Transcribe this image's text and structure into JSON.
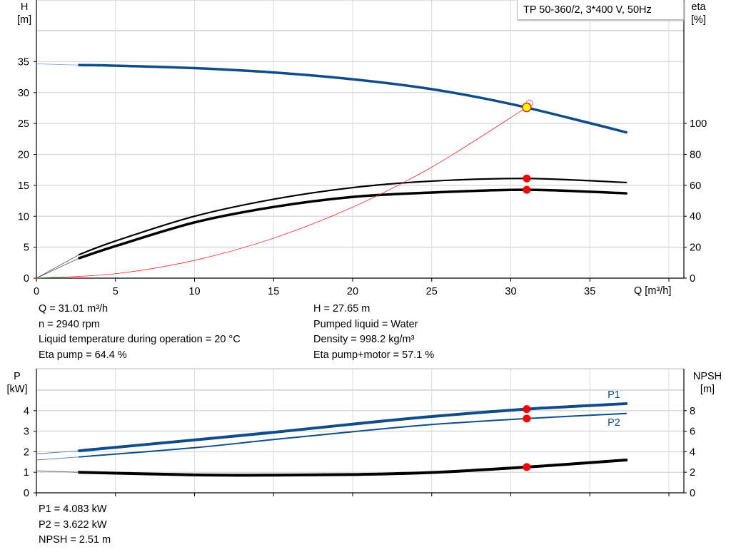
{
  "chart_data": [
    {
      "type": "line",
      "title": "",
      "legend_text": "TP 50-360/2, 3*400 V, 50Hz",
      "xlabel": "Q [m³/h]",
      "ylabel_left": [
        "H",
        "[m]"
      ],
      "ylabel_right": [
        "eta",
        "[%]"
      ],
      "xlim": [
        0,
        40
      ],
      "ylim_left": [
        0,
        40
      ],
      "ylim_right": [
        0,
        100
      ],
      "x_ticks": [
        "0",
        "5",
        "10",
        "15",
        "20",
        "25",
        "30",
        "35"
      ],
      "y_ticks_left": [
        "0",
        "5",
        "10",
        "15",
        "20",
        "25",
        "30",
        "35"
      ],
      "y_ticks_right": [
        "0",
        "20",
        "40",
        "60",
        "80",
        "100"
      ],
      "grid": true,
      "series": [
        {
          "key": "H",
          "axis": "left",
          "color": "#0f4c8a",
          "x": [
            2.7,
            5,
            10,
            15,
            20,
            25,
            30,
            35,
            37.3
          ],
          "y": [
            34.5,
            34.4,
            34.0,
            33.3,
            32.2,
            30.6,
            28.2,
            25.1,
            23.6
          ]
        },
        {
          "key": "eta_pump",
          "axis": "right",
          "color": "#000000",
          "x": [
            2.7,
            5,
            10,
            15,
            20,
            25,
            31.01,
            37.3
          ],
          "y": [
            15.2,
            24,
            40,
            51,
            58.5,
            62.7,
            64.4,
            61.8
          ]
        },
        {
          "key": "eta_pump_motor",
          "axis": "right",
          "color": "#000000",
          "x": [
            2.7,
            5,
            10,
            15,
            20,
            25,
            31.01,
            37.3
          ],
          "y": [
            12.9,
            20.7,
            36,
            46,
            52.5,
            55.3,
            57.1,
            54.8
          ]
        },
        {
          "key": "system_curve",
          "axis": "left",
          "color": "#ff2020",
          "x": [
            0,
            5,
            10,
            15,
            20,
            25,
            31.01
          ],
          "y": [
            0,
            0.72,
            2.88,
            6.47,
            11.5,
            17.97,
            27.65
          ]
        }
      ],
      "operating_point": {
        "Q": 31.01,
        "H": 27.65,
        "eta_pump": 64.4,
        "eta_pump_motor": 57.1
      }
    },
    {
      "type": "line",
      "title": "",
      "ylabel_left": [
        "P",
        "[kW]"
      ],
      "ylabel_right": [
        "NPSH",
        "[m]"
      ],
      "xlim": [
        0,
        40
      ],
      "ylim_left": [
        0,
        5
      ],
      "ylim_right": [
        0,
        10
      ],
      "y_ticks_left": [
        "0",
        "1",
        "2",
        "3",
        "4"
      ],
      "y_ticks_right": [
        "0",
        "2",
        "4",
        "6",
        "8"
      ],
      "grid": true,
      "series": [
        {
          "key": "P1",
          "name": "P1",
          "axis": "left",
          "color": "#0f4c8a",
          "x": [
            2.7,
            10,
            15,
            20,
            25,
            31.01,
            37.3
          ],
          "y": [
            2.05,
            2.58,
            2.95,
            3.35,
            3.72,
            4.083,
            4.35
          ]
        },
        {
          "key": "P2",
          "name": "P2",
          "axis": "left",
          "color": "#0f4c8a",
          "x": [
            2.7,
            10,
            15,
            20,
            25,
            31.01,
            37.3
          ],
          "y": [
            1.75,
            2.2,
            2.6,
            2.98,
            3.33,
            3.622,
            3.87
          ]
        },
        {
          "key": "NPSH",
          "axis": "right",
          "color": "#000000",
          "x": [
            2.7,
            10,
            15,
            20,
            25,
            31.01,
            37.3
          ],
          "y": [
            2.0,
            1.75,
            1.72,
            1.78,
            1.98,
            2.51,
            3.2
          ]
        }
      ],
      "operating_point": {
        "Q": 31.01,
        "P1": 4.083,
        "P2": 3.622,
        "NPSH": 2.51
      }
    }
  ],
  "info_top_left": [
    "Q = 31.01 m³/h",
    "n = 2940 rpm",
    "Liquid temperature during operation = 20 °C",
    "Eta pump = 64.4 %"
  ],
  "info_top_right": [
    "H = 27.65 m",
    "Pumped liquid = Water",
    "Density = 998.2 kg/m³",
    "Eta pump+motor = 57.1 %"
  ],
  "info_bottom": [
    "P1 = 4.083 kW",
    "P2 = 3.622 kW",
    "NPSH = 2.51 m"
  ]
}
